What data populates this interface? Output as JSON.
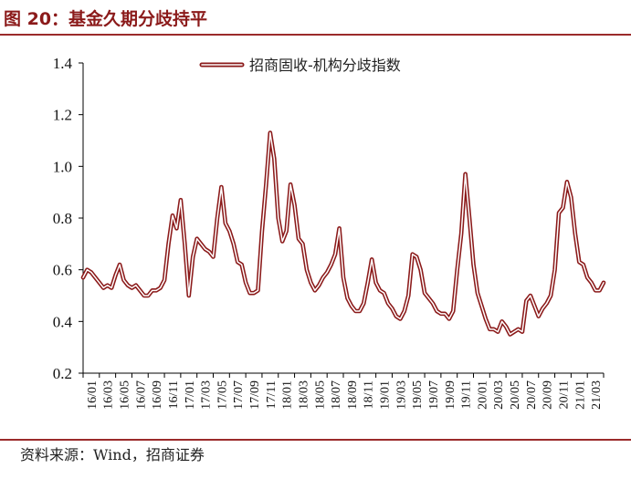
{
  "header": {
    "title": "图 20：基金久期分歧持平"
  },
  "footer": {
    "source": "资料来源：Wind，招商证券"
  },
  "colors": {
    "accent": "#8B1A1A",
    "series_line": "#8B1A1A"
  },
  "chart_data": {
    "type": "line",
    "title": "",
    "xlabel": "",
    "ylabel": "",
    "ylim": [
      0.2,
      1.4
    ],
    "yticks": [
      "0.2",
      "0.4",
      "0.6",
      "0.8",
      "1.0",
      "1.2",
      "1.4"
    ],
    "grid": false,
    "legend_position": "top-center",
    "x_tick_labels": [
      "16/01",
      "16/03",
      "16/05",
      "16/07",
      "16/09",
      "16/11",
      "17/01",
      "17/03",
      "17/05",
      "17/07",
      "17/09",
      "17/11",
      "18/01",
      "18/03",
      "18/05",
      "18/07",
      "18/09",
      "18/11",
      "19/01",
      "19/03",
      "19/05",
      "19/07",
      "19/09",
      "19/11",
      "20/01",
      "20/03",
      "20/05",
      "20/07",
      "20/09",
      "20/11",
      "21/01",
      "21/03"
    ],
    "series": [
      {
        "name": "招商固收-机构分歧指数",
        "values": [
          0.57,
          0.6,
          0.59,
          0.57,
          0.55,
          0.53,
          0.54,
          0.53,
          0.58,
          0.62,
          0.56,
          0.54,
          0.53,
          0.54,
          0.52,
          0.5,
          0.5,
          0.52,
          0.52,
          0.53,
          0.56,
          0.7,
          0.81,
          0.76,
          0.87,
          0.7,
          0.5,
          0.65,
          0.72,
          0.7,
          0.68,
          0.67,
          0.65,
          0.8,
          0.92,
          0.78,
          0.75,
          0.7,
          0.63,
          0.62,
          0.55,
          0.51,
          0.51,
          0.52,
          0.75,
          0.93,
          1.13,
          1.03,
          0.8,
          0.71,
          0.75,
          0.93,
          0.85,
          0.72,
          0.7,
          0.6,
          0.55,
          0.52,
          0.54,
          0.57,
          0.59,
          0.62,
          0.66,
          0.76,
          0.57,
          0.49,
          0.46,
          0.44,
          0.44,
          0.47,
          0.55,
          0.64,
          0.55,
          0.52,
          0.51,
          0.47,
          0.45,
          0.42,
          0.41,
          0.44,
          0.5,
          0.66,
          0.65,
          0.6,
          0.51,
          0.49,
          0.47,
          0.44,
          0.43,
          0.43,
          0.41,
          0.44,
          0.6,
          0.74,
          0.97,
          0.8,
          0.62,
          0.51,
          0.46,
          0.41,
          0.37,
          0.37,
          0.36,
          0.4,
          0.38,
          0.35,
          0.36,
          0.37,
          0.36,
          0.48,
          0.5,
          0.46,
          0.42,
          0.45,
          0.47,
          0.5,
          0.6,
          0.82,
          0.84,
          0.94,
          0.88,
          0.74,
          0.63,
          0.62,
          0.57,
          0.55,
          0.52,
          0.52,
          0.55
        ]
      }
    ]
  }
}
